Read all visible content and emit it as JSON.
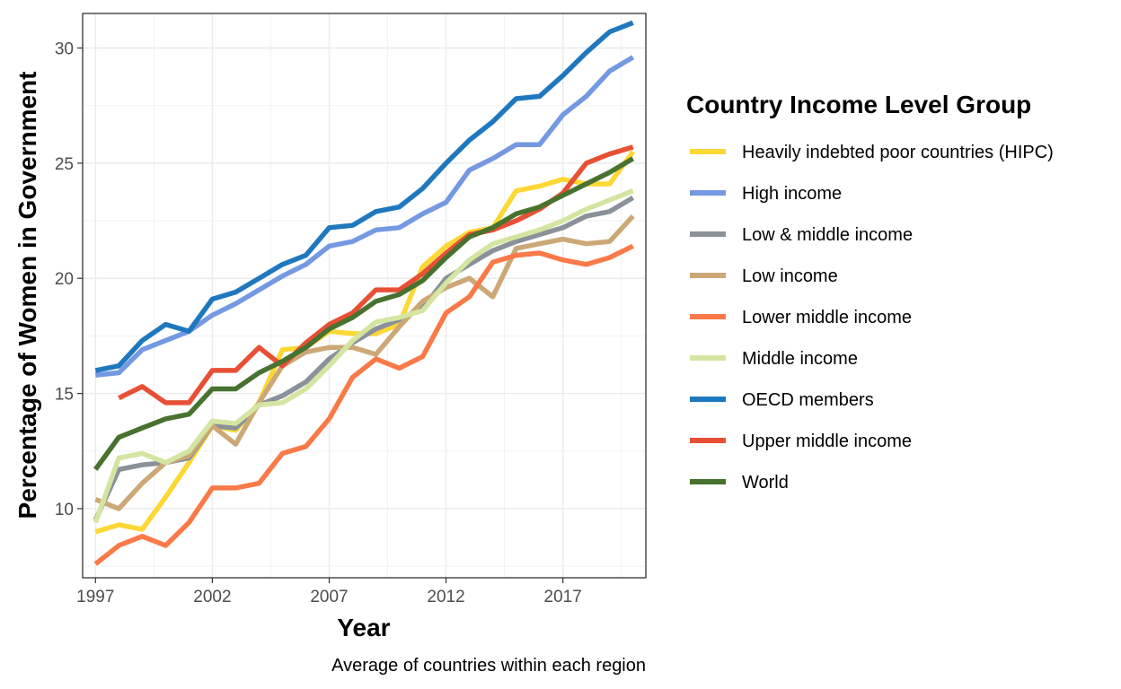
{
  "chart_data": {
    "type": "line",
    "title": "",
    "xlabel": "Year",
    "ylabel": "Percentage of Women in Government",
    "caption": "Average of countries within each region",
    "xlim": [
      1997,
      2020
    ],
    "ylim": [
      7.0,
      31.5
    ],
    "x_ticks": [
      1997,
      2002,
      2007,
      2012,
      2017
    ],
    "y_ticks": [
      10,
      15,
      20,
      25,
      30
    ],
    "grid": true,
    "legend_position": "right",
    "legend_title": "Country Income Level Group",
    "x": [
      1997,
      1998,
      1999,
      2000,
      2001,
      2002,
      2003,
      2004,
      2005,
      2006,
      2007,
      2008,
      2009,
      2010,
      2011,
      2012,
      2013,
      2014,
      2015,
      2016,
      2017,
      2018,
      2019,
      2020
    ],
    "series": [
      {
        "name": "Heavily indebted poor countries (HIPC)",
        "color": "#FDD835",
        "values": [
          9.0,
          9.3,
          9.1,
          10.5,
          12.0,
          13.6,
          13.4,
          14.6,
          16.9,
          17.0,
          17.7,
          17.6,
          17.6,
          18.0,
          20.5,
          21.4,
          22.0,
          22.2,
          23.8,
          24.0,
          24.3,
          24.1,
          24.1,
          25.5
        ]
      },
      {
        "name": "High income",
        "color": "#7499E2",
        "values": [
          15.8,
          15.9,
          16.9,
          17.3,
          17.7,
          18.4,
          18.9,
          19.5,
          20.1,
          20.6,
          21.4,
          21.6,
          22.1,
          22.2,
          22.8,
          23.3,
          24.7,
          25.2,
          25.8,
          25.8,
          27.1,
          27.9,
          29.0,
          29.6
        ]
      },
      {
        "name": "Low & middle income",
        "color": "#8A9199",
        "values": [
          9.5,
          11.7,
          11.9,
          12.0,
          12.2,
          13.6,
          13.5,
          14.5,
          14.9,
          15.5,
          16.5,
          17.2,
          17.8,
          18.2,
          18.7,
          20.0,
          20.6,
          21.2,
          21.6,
          21.9,
          22.2,
          22.7,
          22.9,
          23.5
        ]
      },
      {
        "name": "Low income",
        "color": "#CCA877",
        "values": [
          10.4,
          10.0,
          11.1,
          12.0,
          12.3,
          13.6,
          12.8,
          14.6,
          16.2,
          16.8,
          17.0,
          17.0,
          16.7,
          17.9,
          19.0,
          19.6,
          20.0,
          19.2,
          21.3,
          21.5,
          21.7,
          21.5,
          21.6,
          22.7
        ]
      },
      {
        "name": "Lower middle income",
        "color": "#F97A48",
        "values": [
          7.6,
          8.4,
          8.8,
          8.4,
          9.4,
          10.9,
          10.9,
          11.1,
          12.4,
          12.7,
          13.9,
          15.7,
          16.5,
          16.1,
          16.6,
          18.5,
          19.2,
          20.7,
          21.0,
          21.1,
          20.8,
          20.6,
          20.9,
          21.4
        ]
      },
      {
        "name": "Middle income",
        "color": "#D4E5A1",
        "values": [
          9.4,
          12.2,
          12.4,
          12.0,
          12.5,
          13.8,
          13.7,
          14.5,
          14.6,
          15.2,
          16.2,
          17.3,
          18.1,
          18.3,
          18.6,
          19.8,
          20.8,
          21.5,
          21.8,
          22.1,
          22.5,
          23.0,
          23.4,
          23.8
        ]
      },
      {
        "name": "OECD members",
        "color": "#1F78BE",
        "values": [
          16.0,
          16.2,
          17.3,
          18.0,
          17.7,
          19.1,
          19.4,
          20.0,
          20.6,
          21.0,
          22.2,
          22.3,
          22.9,
          23.1,
          23.9,
          25.0,
          26.0,
          26.8,
          27.8,
          27.9,
          28.8,
          29.8,
          30.7,
          31.1
        ]
      },
      {
        "name": "Upper middle income",
        "color": "#E85035",
        "values": [
          null,
          14.8,
          15.3,
          14.6,
          14.6,
          16.0,
          16.0,
          17.0,
          16.2,
          17.2,
          18.0,
          18.5,
          19.5,
          19.5,
          20.2,
          21.1,
          21.9,
          22.1,
          22.5,
          23.0,
          23.7,
          25.0,
          25.4,
          25.7
        ]
      },
      {
        "name": "World",
        "color": "#47722F",
        "values": [
          11.7,
          13.1,
          13.5,
          13.9,
          14.1,
          15.2,
          15.2,
          15.9,
          16.4,
          17.0,
          17.8,
          18.3,
          19.0,
          19.3,
          19.9,
          20.9,
          21.8,
          22.2,
          22.8,
          23.1,
          23.6,
          24.1,
          24.6,
          25.2
        ]
      }
    ]
  }
}
